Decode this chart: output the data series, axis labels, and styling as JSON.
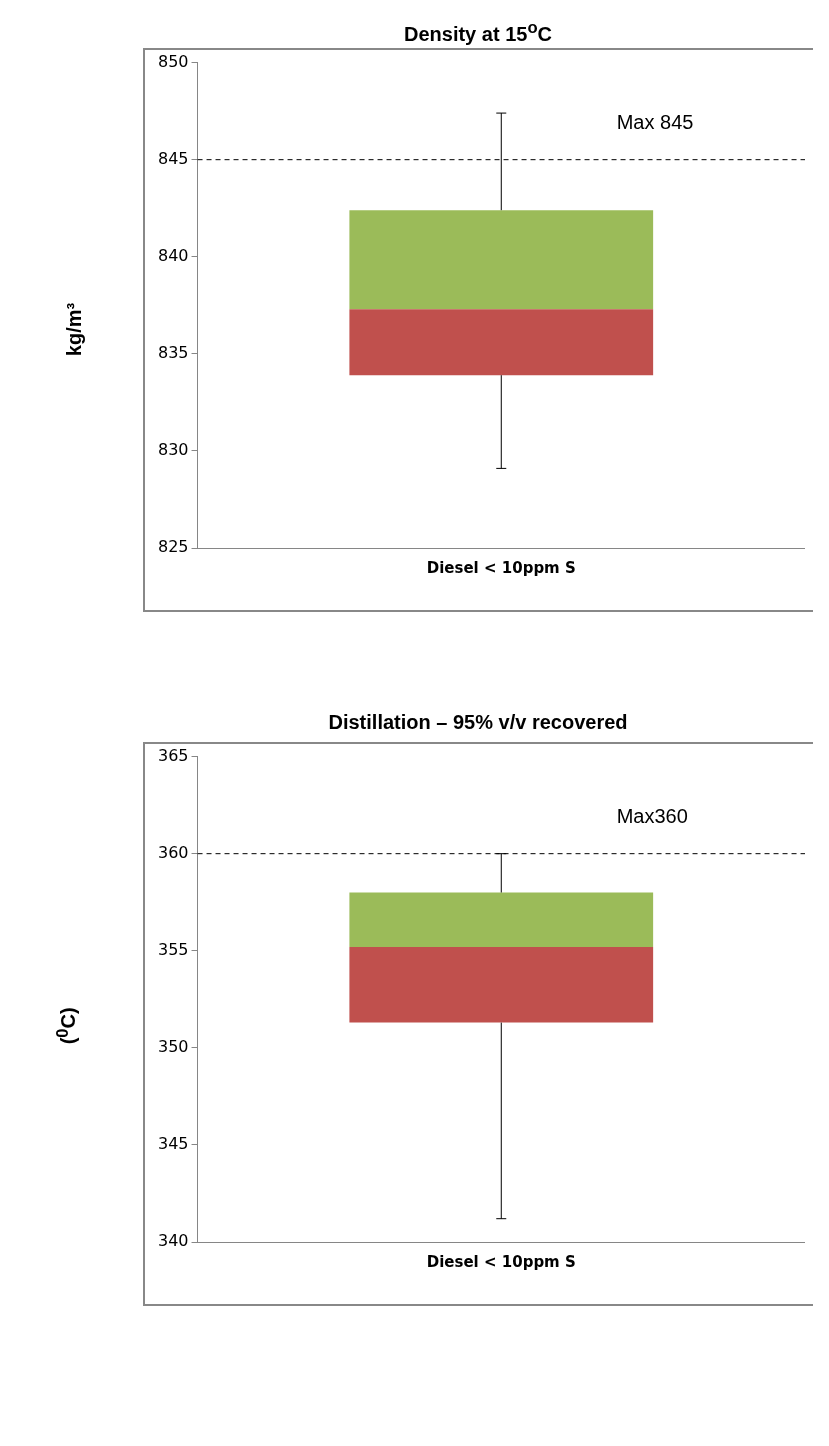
{
  "chart_data": [
    {
      "type": "box",
      "title": "Density at 15$^{o}$C",
      "ylabel": "kg/m³",
      "categories": [
        "Diesel < 10ppm S"
      ],
      "boxes": [
        {
          "low": 829.1,
          "q1": 833.9,
          "median": 837.3,
          "q3": 842.4,
          "high": 847.4
        }
      ],
      "colors": [
        [
          "#c0504d",
          "#9bbb59"
        ]
      ],
      "ylim": [
        825,
        850
      ],
      "yticks": [
        825,
        830,
        835,
        840,
        845,
        850
      ],
      "grid": false,
      "legend": false,
      "ref_lines": [
        {
          "axis": "y",
          "value": 845,
          "label": "Max 845",
          "line_style": "dashed",
          "color": "#000000"
        }
      ]
    },
    {
      "type": "box",
      "title": "Distillation – 95% v/v recovered",
      "ylabel": "($^{0}$C)",
      "categories": [
        "Diesel < 10ppm S"
      ],
      "boxes": [
        {
          "low": 341.2,
          "q1": 351.3,
          "median": 355.2,
          "q3": 358.0,
          "high": 360.0
        }
      ],
      "colors": [
        [
          "#c0504d",
          "#9bbb59"
        ]
      ],
      "ylim": [
        340,
        365
      ],
      "yticks": [
        340,
        345,
        350,
        355,
        360,
        365
      ],
      "grid": false,
      "legend": false,
      "ref_lines": [
        {
          "axis": "y",
          "value": 360,
          "label": "Max360",
          "line_style": "dashed",
          "color": "#000000"
        }
      ]
    }
  ]
}
